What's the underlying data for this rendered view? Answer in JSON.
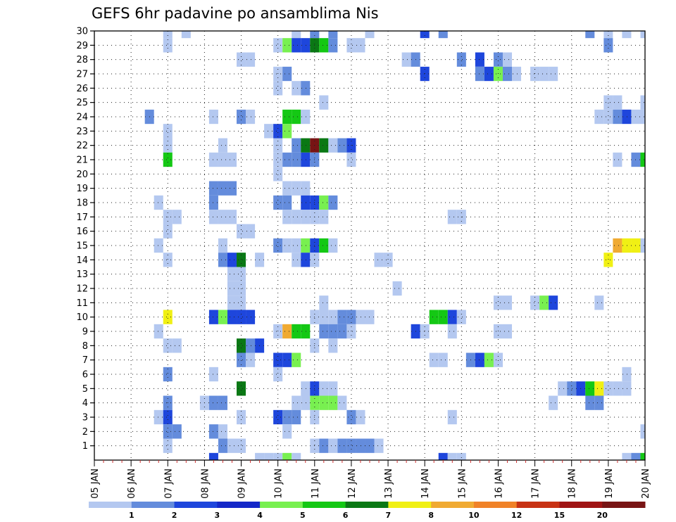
{
  "chart_data": {
    "type": "heatmap",
    "title": "GEFS 6hr padavine po ansamblima Nis",
    "x_labels": [
      "05 JAN",
      "06 JAN",
      "07 JAN",
      "08 JAN",
      "09 JAN",
      "10 JAN",
      "11 JAN",
      "12 JAN",
      "13 JAN",
      "14 JAN",
      "15 JAN",
      "16 JAN",
      "17 JAN",
      "18 JAN",
      "19 JAN",
      "20 JAN"
    ],
    "y_labels": [
      "1",
      "2",
      "3",
      "4",
      "5",
      "6",
      "7",
      "8",
      "9",
      "10",
      "11",
      "12",
      "13",
      "14",
      "15",
      "16",
      "17",
      "18",
      "19",
      "20",
      "21",
      "22",
      "23",
      "24",
      "25",
      "26",
      "27",
      "28",
      "29",
      "30"
    ],
    "grid": true,
    "legend": {
      "labels": [
        "1",
        "2",
        "3",
        "4",
        "5",
        "6",
        "7",
        "8",
        "10",
        "12",
        "15",
        "20"
      ],
      "colors": [
        "#b4c8f0",
        "#648cdc",
        "#1e46dc",
        "#1428c8",
        "#78f050",
        "#14c814",
        "#0a7814",
        "#f0f014",
        "#f0aa32",
        "#f08228",
        "#c83214",
        "#a01414",
        "#781414"
      ]
    },
    "cells": [
      [
        30,
        7,
        1
      ],
      [
        30,
        7.5,
        1
      ],
      [
        30,
        10.5,
        1
      ],
      [
        30,
        11,
        2
      ],
      [
        30,
        11.5,
        2
      ],
      [
        30,
        12.5,
        1
      ],
      [
        30,
        14,
        3
      ],
      [
        30,
        14.5,
        2
      ],
      [
        30,
        18.5,
        2
      ],
      [
        30,
        19,
        1
      ],
      [
        30,
        19.5,
        1
      ],
      [
        30,
        20,
        1
      ],
      [
        29,
        7,
        1
      ],
      [
        29,
        10,
        1
      ],
      [
        29,
        10.25,
        5
      ],
      [
        29,
        10.5,
        3
      ],
      [
        29,
        10.75,
        3
      ],
      [
        29,
        11,
        7
      ],
      [
        29,
        11.25,
        6
      ],
      [
        29,
        11.5,
        2
      ],
      [
        29,
        12,
        1
      ],
      [
        29,
        12.25,
        1
      ],
      [
        29,
        19,
        2
      ],
      [
        28,
        9,
        1
      ],
      [
        28,
        9.25,
        1
      ],
      [
        28,
        13.5,
        1
      ],
      [
        28,
        13.75,
        2
      ],
      [
        28,
        15,
        2
      ],
      [
        28,
        15.5,
        3
      ],
      [
        28,
        16,
        2
      ],
      [
        28,
        16.25,
        1
      ],
      [
        27,
        10,
        1
      ],
      [
        27,
        10.25,
        2
      ],
      [
        27,
        14,
        3
      ],
      [
        27,
        15.5,
        2
      ],
      [
        27,
        15.75,
        3
      ],
      [
        27,
        16,
        5
      ],
      [
        27,
        16.25,
        2
      ],
      [
        27,
        16.5,
        1
      ],
      [
        27,
        17,
        1
      ],
      [
        27,
        17.25,
        1
      ],
      [
        27,
        17.5,
        1
      ],
      [
        26,
        10,
        1
      ],
      [
        26,
        10.5,
        1
      ],
      [
        26,
        10.75,
        2
      ],
      [
        25,
        11.25,
        1
      ],
      [
        25,
        19,
        1
      ],
      [
        25,
        19.25,
        1
      ],
      [
        25,
        20,
        1
      ],
      [
        24,
        6.5,
        2
      ],
      [
        24,
        8.25,
        1
      ],
      [
        24,
        9,
        2
      ],
      [
        24,
        9.25,
        1
      ],
      [
        24,
        10.25,
        6
      ],
      [
        24,
        10.5,
        6
      ],
      [
        24,
        10.75,
        1
      ],
      [
        24,
        18.75,
        1
      ],
      [
        24,
        19,
        1
      ],
      [
        24,
        19.25,
        2
      ],
      [
        24,
        19.5,
        3
      ],
      [
        24,
        19.75,
        1
      ],
      [
        24,
        20,
        1
      ],
      [
        23,
        7,
        1
      ],
      [
        23,
        9.75,
        1
      ],
      [
        23,
        10,
        3
      ],
      [
        23,
        10.25,
        5
      ],
      [
        22,
        7,
        1
      ],
      [
        22,
        8.5,
        1
      ],
      [
        22,
        10,
        1
      ],
      [
        22,
        10.5,
        2
      ],
      [
        22,
        10.75,
        7
      ],
      [
        22,
        11,
        13
      ],
      [
        22,
        11.25,
        7
      ],
      [
        22,
        11.5,
        1
      ],
      [
        22,
        11.75,
        2
      ],
      [
        22,
        12,
        3
      ],
      [
        21,
        7,
        6
      ],
      [
        21,
        8.25,
        1
      ],
      [
        21,
        8.5,
        1
      ],
      [
        21,
        8.75,
        1
      ],
      [
        21,
        10,
        1
      ],
      [
        21,
        10.25,
        2
      ],
      [
        21,
        10.5,
        2
      ],
      [
        21,
        10.75,
        3
      ],
      [
        21,
        11,
        2
      ],
      [
        21,
        12,
        1
      ],
      [
        21,
        19.25,
        1
      ],
      [
        21,
        19.75,
        2
      ],
      [
        21,
        20,
        6
      ],
      [
        20,
        10,
        1
      ],
      [
        19,
        8.25,
        2
      ],
      [
        19,
        8.5,
        2
      ],
      [
        19,
        8.75,
        2
      ],
      [
        19,
        10.25,
        1
      ],
      [
        19,
        10.5,
        1
      ],
      [
        19,
        10.75,
        1
      ],
      [
        18,
        6.75,
        1
      ],
      [
        18,
        8.25,
        2
      ],
      [
        18,
        10,
        2
      ],
      [
        18,
        10.25,
        2
      ],
      [
        18,
        10.75,
        3
      ],
      [
        18,
        11,
        3
      ],
      [
        18,
        11.25,
        5
      ],
      [
        18,
        11.5,
        2
      ],
      [
        17,
        7,
        1
      ],
      [
        17,
        7.25,
        1
      ],
      [
        17,
        8.25,
        1
      ],
      [
        17,
        8.5,
        1
      ],
      [
        17,
        8.75,
        1
      ],
      [
        17,
        10.25,
        1
      ],
      [
        17,
        10.5,
        1
      ],
      [
        17,
        10.75,
        1
      ],
      [
        17,
        11,
        1
      ],
      [
        17,
        11.25,
        1
      ],
      [
        17,
        14.75,
        1
      ],
      [
        17,
        15,
        1
      ],
      [
        16,
        7,
        1
      ],
      [
        16,
        9,
        1
      ],
      [
        16,
        9.25,
        1
      ],
      [
        15,
        6.75,
        1
      ],
      [
        15,
        8.5,
        1
      ],
      [
        15,
        10,
        2
      ],
      [
        15,
        10.25,
        1
      ],
      [
        15,
        10.5,
        1
      ],
      [
        15,
        10.75,
        5
      ],
      [
        15,
        11,
        3
      ],
      [
        15,
        11.25,
        6
      ],
      [
        15,
        11.5,
        1
      ],
      [
        15,
        19.25,
        9
      ],
      [
        15,
        19.5,
        8
      ],
      [
        15,
        19.75,
        8
      ],
      [
        15,
        20,
        1
      ],
      [
        14,
        7,
        1
      ],
      [
        14,
        8.5,
        2
      ],
      [
        14,
        8.75,
        3
      ],
      [
        14,
        9,
        7
      ],
      [
        14,
        9.5,
        1
      ],
      [
        14,
        10.5,
        1
      ],
      [
        14,
        10.75,
        3
      ],
      [
        14,
        11,
        1
      ],
      [
        14,
        12.75,
        1
      ],
      [
        14,
        13,
        1
      ],
      [
        14,
        19,
        8
      ],
      [
        13,
        8.75,
        1
      ],
      [
        13,
        9,
        1
      ],
      [
        12,
        8.75,
        1
      ],
      [
        12,
        9,
        1
      ],
      [
        12,
        13.25,
        1
      ],
      [
        11,
        8.75,
        1
      ],
      [
        11,
        9,
        1
      ],
      [
        11,
        11.25,
        1
      ],
      [
        11,
        16,
        1
      ],
      [
        11,
        16.25,
        1
      ],
      [
        11,
        17,
        1
      ],
      [
        11,
        17.25,
        5
      ],
      [
        11,
        17.5,
        3
      ],
      [
        11,
        18.75,
        1
      ],
      [
        10,
        7,
        8
      ],
      [
        10,
        8.25,
        3
      ],
      [
        10,
        8.5,
        5
      ],
      [
        10,
        8.75,
        3
      ],
      [
        10,
        9,
        3
      ],
      [
        10,
        9.25,
        3
      ],
      [
        10,
        11,
        1
      ],
      [
        10,
        11.25,
        1
      ],
      [
        10,
        11.5,
        1
      ],
      [
        10,
        11.75,
        2
      ],
      [
        10,
        12,
        2
      ],
      [
        10,
        12.25,
        1
      ],
      [
        10,
        12.5,
        1
      ],
      [
        10,
        14.25,
        6
      ],
      [
        10,
        14.5,
        6
      ],
      [
        10,
        14.75,
        3
      ],
      [
        10,
        15,
        1
      ],
      [
        9,
        6.75,
        1
      ],
      [
        9,
        10,
        1
      ],
      [
        9,
        10.25,
        9
      ],
      [
        9,
        10.5,
        6
      ],
      [
        9,
        10.75,
        6
      ],
      [
        9,
        11.25,
        2
      ],
      [
        9,
        11.5,
        2
      ],
      [
        9,
        11.75,
        2
      ],
      [
        9,
        12,
        1
      ],
      [
        9,
        13.75,
        3
      ],
      [
        9,
        14,
        1
      ],
      [
        9,
        14.75,
        1
      ],
      [
        9,
        16,
        1
      ],
      [
        9,
        16.25,
        1
      ],
      [
        8,
        7,
        1
      ],
      [
        8,
        7.25,
        1
      ],
      [
        8,
        9,
        7
      ],
      [
        8,
        9.25,
        2
      ],
      [
        8,
        9.5,
        3
      ],
      [
        8,
        11,
        1
      ],
      [
        8,
        11.5,
        1
      ],
      [
        7,
        9,
        2
      ],
      [
        7,
        9.25,
        1
      ],
      [
        7,
        10,
        3
      ],
      [
        7,
        10.25,
        3
      ],
      [
        7,
        10.5,
        5
      ],
      [
        7,
        14.25,
        1
      ],
      [
        7,
        14.5,
        1
      ],
      [
        7,
        15.25,
        2
      ],
      [
        7,
        15.5,
        3
      ],
      [
        7,
        15.75,
        5
      ],
      [
        7,
        16,
        1
      ],
      [
        6,
        7,
        2
      ],
      [
        6,
        8.25,
        1
      ],
      [
        6,
        10,
        1
      ],
      [
        6,
        19.5,
        1
      ],
      [
        5,
        9,
        7
      ],
      [
        5,
        10.75,
        1
      ],
      [
        5,
        11,
        3
      ],
      [
        5,
        11.25,
        1
      ],
      [
        5,
        11.5,
        1
      ],
      [
        5,
        17.75,
        1
      ],
      [
        5,
        18,
        2
      ],
      [
        5,
        18.25,
        3
      ],
      [
        5,
        18.5,
        6
      ],
      [
        5,
        18.75,
        8
      ],
      [
        5,
        19,
        1
      ],
      [
        5,
        19.25,
        1
      ],
      [
        5,
        19.5,
        1
      ],
      [
        4,
        7,
        2
      ],
      [
        4,
        8,
        1
      ],
      [
        4,
        8.25,
        2
      ],
      [
        4,
        8.5,
        2
      ],
      [
        4,
        10.5,
        1
      ],
      [
        4,
        10.75,
        1
      ],
      [
        4,
        11,
        5
      ],
      [
        4,
        11.25,
        5
      ],
      [
        4,
        11.5,
        5
      ],
      [
        4,
        11.75,
        1
      ],
      [
        4,
        17.5,
        1
      ],
      [
        4,
        18.5,
        2
      ],
      [
        4,
        18.75,
        2
      ],
      [
        3,
        6.75,
        1
      ],
      [
        3,
        7,
        3
      ],
      [
        3,
        9,
        1
      ],
      [
        3,
        10,
        3
      ],
      [
        3,
        10.25,
        2
      ],
      [
        3,
        10.5,
        2
      ],
      [
        3,
        11,
        1
      ],
      [
        3,
        12,
        2
      ],
      [
        3,
        12.25,
        1
      ],
      [
        3,
        14.75,
        1
      ],
      [
        2,
        7,
        2
      ],
      [
        2,
        7.25,
        2
      ],
      [
        2,
        8.25,
        2
      ],
      [
        2,
        8.5,
        1
      ],
      [
        2,
        10.25,
        1
      ],
      [
        2,
        20,
        1
      ],
      [
        1,
        7,
        1
      ],
      [
        1,
        8.5,
        2
      ],
      [
        1,
        8.75,
        1
      ],
      [
        1,
        9,
        1
      ],
      [
        1,
        11,
        1
      ],
      [
        1,
        11.25,
        2
      ],
      [
        1,
        11.5,
        1
      ],
      [
        1,
        11.75,
        2
      ],
      [
        1,
        12,
        2
      ],
      [
        1,
        12.25,
        2
      ],
      [
        1,
        12.5,
        2
      ],
      [
        1,
        12.75,
        1
      ],
      [
        0,
        8.25,
        3
      ],
      [
        0,
        9.5,
        1
      ],
      [
        0,
        9.75,
        1
      ],
      [
        0,
        10,
        1
      ],
      [
        0,
        10.25,
        5
      ],
      [
        0,
        10.5,
        1
      ],
      [
        0,
        14.5,
        3
      ],
      [
        0,
        14.75,
        1
      ],
      [
        0,
        15,
        1
      ],
      [
        0,
        19.5,
        1
      ],
      [
        0,
        19.75,
        2
      ],
      [
        0,
        20,
        6
      ]
    ]
  }
}
